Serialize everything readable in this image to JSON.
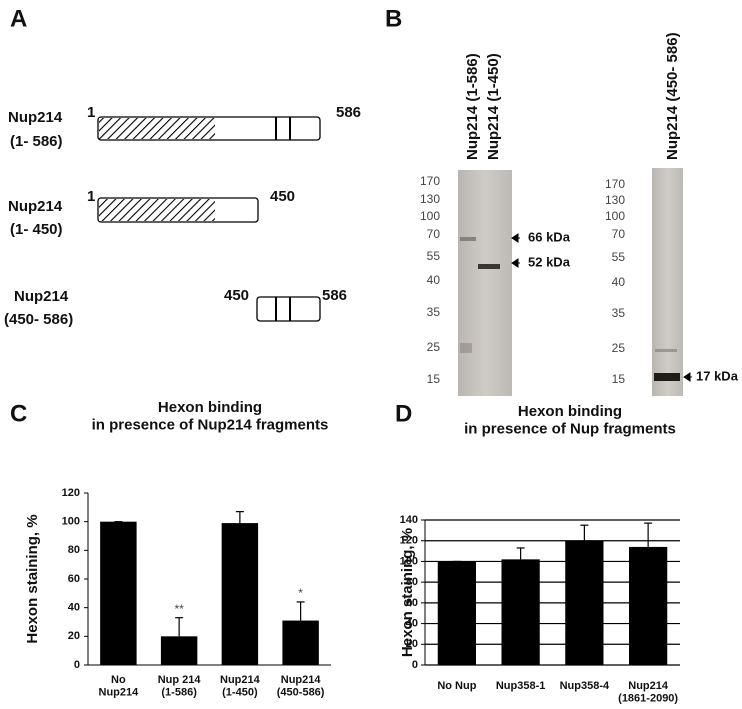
{
  "panel_labels": [
    "A",
    "B",
    "C",
    "D"
  ],
  "constructs": [
    {
      "name": "Nup214",
      "range": "(1- 586)",
      "start": "1",
      "end": "586"
    },
    {
      "name": "Nup214",
      "range": "(1- 450)",
      "start": "1",
      "end": "450"
    },
    {
      "name": "Nup214",
      "range": "(450- 586)",
      "start": "450",
      "end": "586"
    }
  ],
  "gels": [
    {
      "lanes": [
        "Nup214  (1-586)",
        "Nup214  (1-450)"
      ],
      "markers": [
        "170",
        "130",
        "100",
        "70",
        "55",
        "40",
        "35",
        "25",
        "15"
      ],
      "bands": [
        "66 kDa",
        "52 kDa"
      ]
    },
    {
      "lanes": [
        "Nup214 (450- 586)"
      ],
      "markers": [
        "170",
        "130",
        "100",
        "70",
        "55",
        "40",
        "35",
        "25",
        "15"
      ],
      "bands": [
        "17 kDa"
      ]
    }
  ],
  "chart_data": [
    {
      "type": "bar",
      "title": "Hexon binding\nin presence of Nup214 fragments",
      "y_label": "Hexon staining, %",
      "categories": [
        "No\nNup214",
        "Nup 214\n(1-586)",
        "Nup214\n(1-450)",
        "Nup214\n(450-586)"
      ],
      "values": [
        100,
        20,
        99,
        31
      ],
      "errors": [
        0,
        13,
        8,
        13
      ],
      "significance": [
        null,
        "**",
        null,
        "*"
      ],
      "color": "#000000",
      "ylim": [
        0,
        120
      ],
      "yticks": [
        0,
        20,
        40,
        60,
        80,
        100,
        120
      ],
      "grid": false
    },
    {
      "type": "bar",
      "title": "Hexon  binding\nin presence of Nup fragments",
      "y_label": "Hexon staining, %",
      "categories": [
        "No Nup",
        "Nup358-1",
        "Nup358-4",
        "Nup214\n(1861-2090)"
      ],
      "values": [
        100,
        102,
        120,
        114
      ],
      "errors": [
        0,
        11,
        15,
        23
      ],
      "color": "#000000",
      "ylim": [
        0,
        140
      ],
      "yticks": [
        0,
        20,
        40,
        60,
        80,
        100,
        120,
        140
      ],
      "grid": true
    }
  ]
}
